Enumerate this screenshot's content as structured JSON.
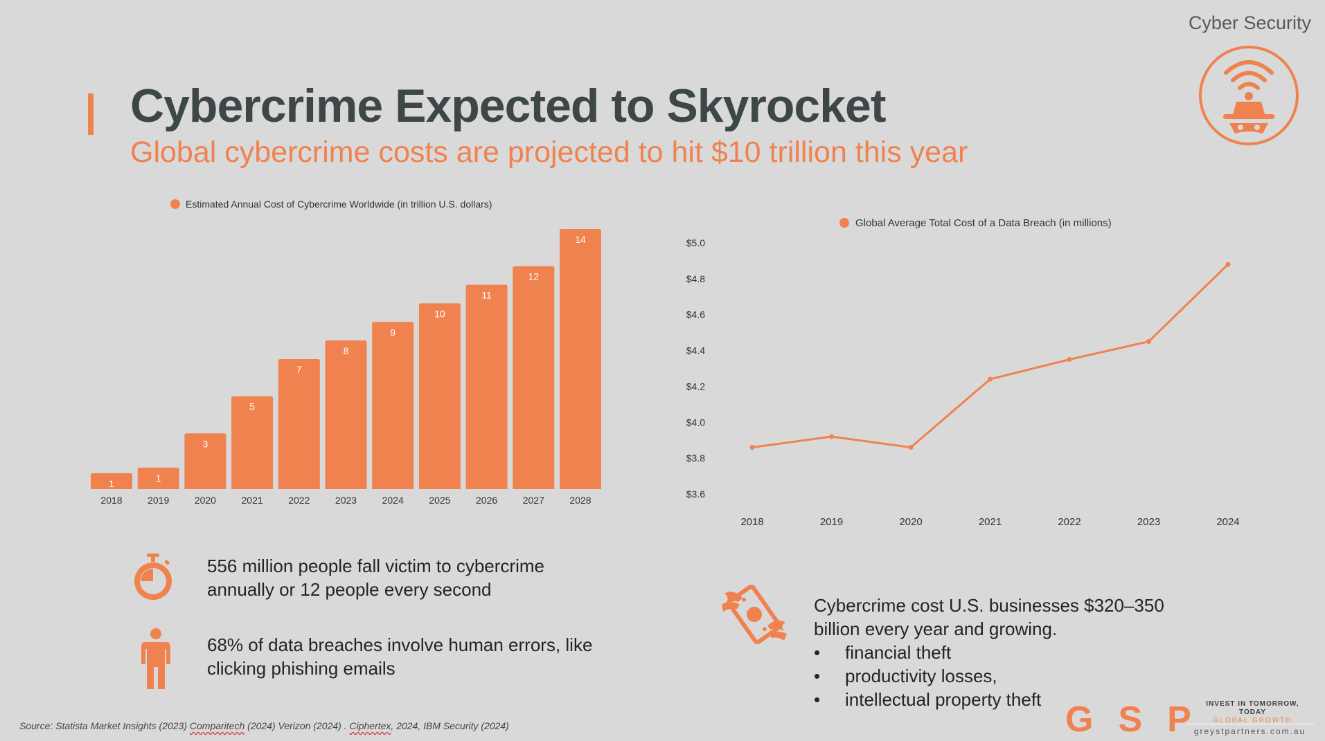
{
  "header": {
    "category": "Cyber Security",
    "title": "Cybercrime Expected to Skyrocket",
    "subtitle": "Global cybercrime costs are projected to hit $10 trillion this year"
  },
  "colors": {
    "accent": "#f0824f",
    "title": "#3e4747",
    "background": "#d9d9d9"
  },
  "chart_data": [
    {
      "type": "bar",
      "legend": "Estimated Annual Cost of Cybercrime Worldwide (in trillion U.S. dollars)",
      "categories": [
        "2018",
        "2019",
        "2020",
        "2021",
        "2022",
        "2023",
        "2024",
        "2025",
        "2026",
        "2027",
        "2028"
      ],
      "values": [
        0.86,
        1.16,
        3.0,
        5.0,
        7.0,
        8.0,
        9.0,
        10.0,
        11.0,
        12.0,
        14.0
      ],
      "labels": [
        "1",
        "1",
        "3",
        "5",
        "7",
        "8",
        "9",
        "10",
        "11",
        "12",
        "14"
      ],
      "ylim": [
        0,
        14
      ]
    },
    {
      "type": "line",
      "legend": "Global Average Total Cost of a Data Breach (in millions)",
      "x": [
        "2018",
        "2019",
        "2020",
        "2021",
        "2022",
        "2023",
        "2024"
      ],
      "values": [
        3.86,
        3.92,
        3.86,
        4.24,
        4.35,
        4.45,
        4.88
      ],
      "yticks": [
        "$5.0",
        "$4.8",
        "$4.6",
        "$4.4",
        "$4.2",
        "$4.0",
        "$3.8",
        "$3.6"
      ],
      "ylim": [
        3.6,
        5.0
      ]
    }
  ],
  "stats": {
    "victims": "556 million people fall victim to cybercrime annually or 12 people every second",
    "human_error": "68% of data breaches involve human errors, like clicking phishing emails",
    "business_cost": "Cybercrime cost U.S. businesses $320–350 billion every year and growing.",
    "bullets": [
      "financial theft",
      "productivity losses,",
      "intellectual property theft"
    ],
    "bullet_mark": "•"
  },
  "source": {
    "prefix": "Source: Statista Market Insights (2023) ",
    "comparitech": "Comparitech",
    "mid": " (2024) Verizon (2024) . ",
    "ciphertex": "Ciphertex",
    "suffix": ", 2024, IBM Security (2024)"
  },
  "footer": {
    "logo": "GSP",
    "tagline_top": "INVEST IN TOMORROW, TODAY",
    "tagline_sub": "GLOBAL GROWTH",
    "website": "greystpartners.com.au"
  },
  "icons": [
    "hacker-wifi-icon",
    "stopwatch-icon",
    "person-icon",
    "flying-money-icon"
  ]
}
